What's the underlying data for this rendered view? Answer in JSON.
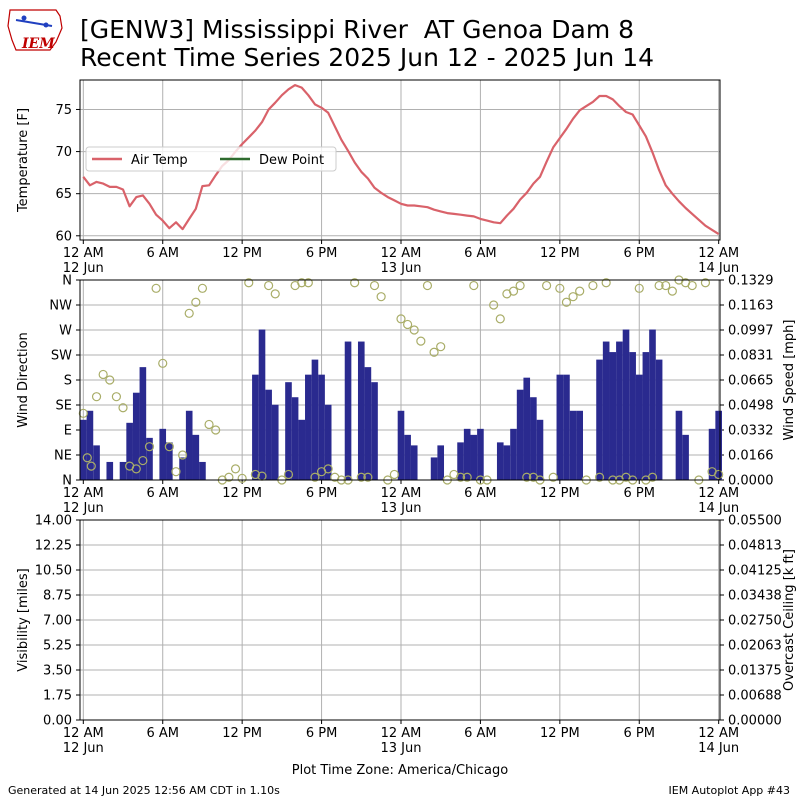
{
  "title_line1": "[GENW3] Mississippi River  AT Genoa Dam 8",
  "title_line2": "Recent Time Series 2025 Jun 12 - 2025 Jun 14",
  "logo_text": "IEM",
  "footer_left": "Generated at 14 Jun 2025 12:56 AM CDT in 1.10s",
  "footer_right": "IEM Autoplot App #43",
  "timezone_label": "Plot Time Zone: America/Chicago",
  "colors": {
    "air_temp": "#d9626a",
    "dew_point": "#2e6b2e",
    "wind_speed_bar": "#2a2a8f",
    "wind_dir_marker": "#a9ad68",
    "ceiling_axis_label": "#008000",
    "grid": "#b0b0b0"
  },
  "x_ticks": [
    {
      "line1": "12 AM",
      "line2": "12 Jun"
    },
    {
      "line1": "6 AM",
      "line2": ""
    },
    {
      "line1": "12 PM",
      "line2": ""
    },
    {
      "line1": "6 PM",
      "line2": ""
    },
    {
      "line1": "12 AM",
      "line2": "13 Jun"
    },
    {
      "line1": "6 AM",
      "line2": ""
    },
    {
      "line1": "12 PM",
      "line2": ""
    },
    {
      "line1": "6 PM",
      "line2": ""
    },
    {
      "line1": "12 AM",
      "line2": "14 Jun"
    }
  ],
  "chart_data": [
    {
      "type": "line",
      "ylabel": "Temperature [F]",
      "ylim": [
        59.5,
        78.5
      ],
      "yticks": [
        "60",
        "65",
        "70",
        "75"
      ],
      "x_unit": "hours since 12 AM 12 Jun",
      "xlim": [
        -0.25,
        48.1
      ],
      "grid": true,
      "legend": {
        "placement": "center-left",
        "entries": [
          "Air Temp",
          "Dew Point"
        ]
      },
      "series": [
        {
          "name": "Air Temp",
          "x": [
            0,
            0.5,
            1,
            1.5,
            2,
            2.5,
            3,
            3.5,
            4,
            4.5,
            5,
            5.5,
            6,
            6.5,
            7,
            7.5,
            8,
            8.5,
            9,
            9.5,
            10,
            10.5,
            11,
            11.5,
            12,
            12.5,
            13,
            13.5,
            14,
            14.5,
            15,
            15.5,
            16,
            16.5,
            17,
            17.5,
            18,
            18.5,
            19,
            19.5,
            20,
            20.5,
            21,
            21.5,
            22,
            22.5,
            23,
            23.5,
            24,
            24.5,
            25,
            25.5,
            26,
            26.5,
            27,
            27.5,
            28,
            28.5,
            29,
            29.5,
            30,
            30.5,
            31,
            31.5,
            32,
            32.5,
            33,
            33.5,
            34,
            34.5,
            35,
            35.5,
            36,
            36.5,
            37,
            37.5,
            38,
            38.5,
            39,
            39.5,
            40,
            40.5,
            41,
            41.5,
            42,
            42.5,
            43,
            43.5,
            44,
            44.5,
            45,
            45.5,
            46,
            46.5,
            47,
            47.5,
            48
          ],
          "values": [
            67.0,
            66.0,
            66.4,
            66.2,
            65.8,
            65.8,
            65.5,
            63.5,
            64.6,
            64.8,
            63.8,
            62.5,
            61.8,
            60.9,
            61.6,
            60.8,
            62.0,
            63.2,
            65.9,
            66.0,
            67.2,
            68.3,
            69.0,
            70.0,
            70.9,
            71.7,
            72.5,
            73.5,
            75.0,
            75.8,
            76.7,
            77.4,
            77.9,
            77.6,
            76.7,
            75.6,
            75.2,
            74.6,
            73.0,
            71.4,
            70.1,
            68.7,
            67.6,
            66.8,
            65.7,
            65.1,
            64.6,
            64.2,
            63.8,
            63.6,
            63.6,
            63.5,
            63.4,
            63.1,
            62.9,
            62.7,
            62.6,
            62.5,
            62.4,
            62.3,
            62.0,
            61.8,
            61.6,
            61.5,
            62.4,
            63.2,
            64.3,
            65.1,
            66.2,
            67.0,
            68.8,
            70.5,
            71.6,
            72.7,
            73.9,
            74.9,
            75.4,
            75.9,
            76.6,
            76.6,
            76.2,
            75.4,
            74.7,
            74.4,
            73.1,
            71.8,
            69.9,
            67.8,
            66.0,
            65.0,
            64.1,
            63.3,
            62.6,
            61.9,
            61.2,
            60.7,
            60.2
          ]
        },
        {
          "name": "Dew Point",
          "x": [],
          "values": []
        }
      ]
    },
    {
      "type": "bar",
      "ylabel": "Wind Direction",
      "y2label": "Wind Speed [mph]",
      "ylim": [
        0,
        360
      ],
      "yticks": [
        "N",
        "NE",
        "E",
        "SE",
        "S",
        "SW",
        "W",
        "NW",
        "N"
      ],
      "y2lim": [
        0,
        0.1329
      ],
      "y2ticks": [
        "0.0000",
        "0.0166",
        "0.0332",
        "0.0498",
        "0.0665",
        "0.0831",
        "0.0997",
        "0.1163",
        "0.1329"
      ],
      "x_unit": "hours since 12 AM 12 Jun",
      "xlim": [
        -0.25,
        48.1
      ],
      "grid": true,
      "series": [
        {
          "name": "Wind Speed",
          "x": [
            0,
            0.5,
            1,
            2,
            3,
            3.5,
            4,
            4.5,
            5,
            5.5,
            6,
            6.5,
            7,
            7.5,
            8,
            8.5,
            9,
            9.5,
            10,
            12,
            12.5,
            13,
            13.5,
            14,
            14.5,
            15,
            15.5,
            16,
            16.5,
            17,
            17.5,
            18,
            18.5,
            19,
            19.5,
            20,
            21,
            21.5,
            22,
            22.5,
            23,
            23.5,
            24,
            24.5,
            25,
            25.5,
            26,
            26.5,
            27,
            27.5,
            28,
            28.5,
            29,
            29.5,
            30,
            30.5,
            31,
            31.5,
            32,
            32.5,
            33,
            33.5,
            34,
            34.5,
            35,
            35.5,
            36,
            36.5,
            37,
            37.5,
            38,
            38.5,
            39,
            39.5,
            40,
            40.5,
            41,
            41.5,
            42,
            42.5,
            43,
            43.5,
            44,
            44.5,
            45,
            45.5,
            46,
            46.5,
            47,
            47.5,
            48
          ],
          "values": [
            0.04,
            0.046,
            0.023,
            0.012,
            0.012,
            0.038,
            0.058,
            0.075,
            0.028,
            0.0,
            0.034,
            0.025,
            0.0,
            0.015,
            0.046,
            0.03,
            0.012,
            0.0,
            0.0,
            0.0,
            0.0,
            0.07,
            0.1,
            0.06,
            0.05,
            0.0,
            0.065,
            0.055,
            0.04,
            0.07,
            0.08,
            0.07,
            0.05,
            0.0,
            0.0,
            0.092,
            0.092,
            0.075,
            0.065,
            0.0,
            0.0,
            0.0,
            0.046,
            0.03,
            0.023,
            0.0,
            0.0,
            0.015,
            0.023,
            0.0,
            0.0,
            0.025,
            0.034,
            0.03,
            0.034,
            0.0,
            0.0,
            0.025,
            0.023,
            0.034,
            0.06,
            0.068,
            0.055,
            0.04,
            0.0,
            0.0,
            0.07,
            0.07,
            0.046,
            0.046,
            0.0,
            0.0,
            0.08,
            0.092,
            0.085,
            0.092,
            0.1,
            0.085,
            0.07,
            0.085,
            0.1,
            0.08,
            0.0,
            0.0,
            0.046,
            0.03,
            0.0,
            0.0,
            0.0,
            0.034,
            0.046
          ]
        },
        {
          "name": "Wind Direction",
          "type": "scatter",
          "x": [
            0,
            0.3,
            0.6,
            1,
            1.5,
            2,
            2.5,
            3,
            3.5,
            4,
            4.5,
            5,
            5.5,
            6,
            6.5,
            7,
            7.5,
            8,
            8.5,
            9,
            9.5,
            10,
            10.5,
            11,
            11.5,
            12,
            12.5,
            13,
            13.5,
            14,
            14.5,
            15,
            15.5,
            16,
            16.5,
            17,
            17.5,
            18,
            18.5,
            19,
            19.5,
            20,
            20.5,
            21,
            21.5,
            22,
            22.5,
            23,
            23.5,
            24,
            24.5,
            25,
            25.5,
            26,
            26.5,
            27,
            27.5,
            28,
            28.5,
            29,
            29.5,
            30,
            30.5,
            31,
            31.5,
            32,
            32.5,
            33,
            33.5,
            34,
            34.5,
            35,
            35.5,
            36,
            36.5,
            37,
            37.5,
            38,
            38.5,
            39,
            39.5,
            40,
            40.5,
            41,
            41.5,
            42,
            42.5,
            43,
            43.5,
            44,
            44.5,
            45,
            45.5,
            46,
            46.5,
            47,
            47.5,
            48
          ],
          "values": [
            120,
            40,
            25,
            150,
            190,
            180,
            150,
            130,
            25,
            20,
            35,
            60,
            345,
            210,
            60,
            15,
            45,
            300,
            320,
            345,
            100,
            90,
            0,
            5,
            20,
            3,
            355,
            10,
            7,
            350,
            335,
            0,
            10,
            350,
            355,
            355,
            5,
            15,
            20,
            5,
            0,
            0,
            355,
            5,
            5,
            350,
            330,
            0,
            10,
            290,
            280,
            270,
            250,
            350,
            230,
            240,
            0,
            10,
            5,
            5,
            350,
            0,
            0,
            315,
            290,
            335,
            340,
            350,
            5,
            5,
            0,
            350,
            5,
            345,
            320,
            330,
            340,
            0,
            350,
            5,
            355,
            0,
            0,
            5,
            0,
            345,
            0,
            5,
            350,
            350,
            340,
            360,
            355,
            350,
            0,
            355,
            15,
            10
          ]
        }
      ]
    },
    {
      "type": "line",
      "ylabel": "Visibility [miles]",
      "y2label": "Overcast Ceiling [k ft]",
      "ylim": [
        0,
        14
      ],
      "yticks": [
        "0.00",
        "1.75",
        "3.50",
        "5.25",
        "7.00",
        "8.75",
        "10.50",
        "12.25",
        "14.00"
      ],
      "y2lim": [
        0,
        0.055
      ],
      "y2ticks": [
        "0.00000",
        "0.00688",
        "0.01375",
        "0.02063",
        "0.02750",
        "0.03438",
        "0.04125",
        "0.04813",
        "0.05500"
      ],
      "xlabel": "Plot Time Zone: America/Chicago",
      "grid": true,
      "series": []
    }
  ]
}
